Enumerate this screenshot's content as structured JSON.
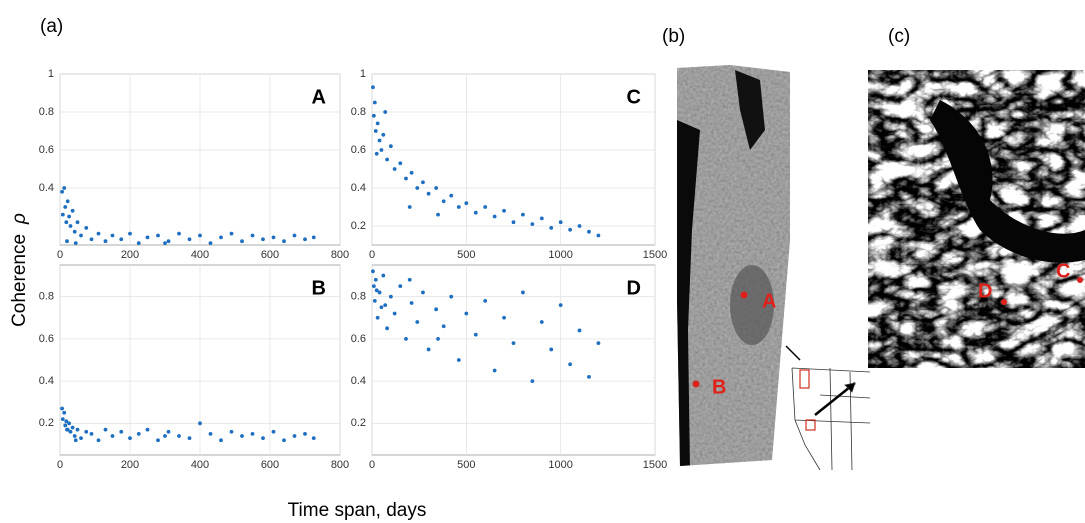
{
  "panel_labels": [
    "(a)",
    "(b)",
    "(c)"
  ],
  "ylabel": "Coherence",
  "ylabel_symbol": "ρ",
  "xlabel": "Time span, days",
  "map_markers": [
    "A",
    "B",
    "C",
    "D"
  ],
  "chart_data": [
    {
      "type": "scatter",
      "label": "A",
      "color": "#1f6fc0",
      "grid": true,
      "x": [
        6,
        8,
        12,
        15,
        18,
        22,
        26,
        30,
        36,
        42,
        50,
        60,
        75,
        90,
        110,
        130,
        150,
        175,
        200,
        225,
        250,
        280,
        310,
        340,
        370,
        400,
        430,
        460,
        490,
        520,
        550,
        580,
        610,
        640,
        670,
        700,
        725,
        20,
        45,
        300
      ],
      "y": [
        0.38,
        0.26,
        0.4,
        0.3,
        0.22,
        0.33,
        0.25,
        0.2,
        0.28,
        0.17,
        0.22,
        0.15,
        0.19,
        0.13,
        0.16,
        0.12,
        0.15,
        0.13,
        0.16,
        0.11,
        0.14,
        0.15,
        0.12,
        0.16,
        0.13,
        0.15,
        0.11,
        0.14,
        0.16,
        0.12,
        0.15,
        0.13,
        0.14,
        0.12,
        0.15,
        0.13,
        0.14,
        0.12,
        0.11,
        0.11
      ],
      "xlim": [
        0,
        800
      ],
      "xticks": [
        0,
        200,
        400,
        600,
        800
      ],
      "ylim": [
        0.1,
        1
      ],
      "yticks": [
        0.4,
        0.6,
        0.8,
        1
      ]
    },
    {
      "type": "scatter",
      "label": "B",
      "color": "#1f6fc0",
      "grid": true,
      "x": [
        6,
        8,
        12,
        15,
        18,
        22,
        26,
        30,
        36,
        42,
        50,
        60,
        75,
        90,
        110,
        130,
        150,
        175,
        200,
        225,
        250,
        280,
        310,
        340,
        370,
        400,
        430,
        460,
        490,
        520,
        550,
        580,
        610,
        640,
        670,
        700,
        725,
        20,
        45,
        300
      ],
      "y": [
        0.27,
        0.22,
        0.25,
        0.19,
        0.21,
        0.17,
        0.2,
        0.16,
        0.18,
        0.14,
        0.17,
        0.13,
        0.16,
        0.15,
        0.12,
        0.17,
        0.14,
        0.16,
        0.13,
        0.15,
        0.17,
        0.12,
        0.16,
        0.14,
        0.13,
        0.2,
        0.15,
        0.12,
        0.16,
        0.14,
        0.15,
        0.13,
        0.16,
        0.12,
        0.14,
        0.15,
        0.13,
        0.17,
        0.12,
        0.14
      ],
      "xlim": [
        0,
        800
      ],
      "xticks": [
        0,
        200,
        400,
        600,
        800
      ],
      "ylim": [
        0.05,
        0.95
      ],
      "yticks": [
        0.2,
        0.4,
        0.6,
        0.8
      ]
    },
    {
      "type": "scatter",
      "label": "C",
      "color": "#1f6fc0",
      "grid": true,
      "x": [
        5,
        10,
        15,
        20,
        30,
        40,
        50,
        60,
        80,
        100,
        120,
        150,
        180,
        210,
        240,
        270,
        300,
        340,
        380,
        420,
        460,
        500,
        550,
        600,
        650,
        700,
        750,
        800,
        850,
        900,
        950,
        1000,
        1050,
        1100,
        1150,
        1200,
        25,
        70,
        200,
        350
      ],
      "y": [
        0.93,
        0.78,
        0.85,
        0.7,
        0.74,
        0.65,
        0.6,
        0.68,
        0.55,
        0.62,
        0.5,
        0.53,
        0.45,
        0.48,
        0.4,
        0.43,
        0.37,
        0.4,
        0.33,
        0.36,
        0.3,
        0.32,
        0.27,
        0.3,
        0.25,
        0.28,
        0.22,
        0.26,
        0.21,
        0.24,
        0.19,
        0.22,
        0.18,
        0.2,
        0.17,
        0.15,
        0.58,
        0.8,
        0.3,
        0.26
      ],
      "xlim": [
        0,
        1500
      ],
      "xticks": [
        0,
        500,
        1000,
        1500
      ],
      "ylim": [
        0.1,
        1
      ],
      "yticks": [
        0.2,
        0.4,
        0.6,
        0.8,
        1
      ]
    },
    {
      "type": "scatter",
      "label": "D",
      "color": "#1f6fc0",
      "grid": true,
      "x": [
        5,
        10,
        15,
        20,
        30,
        40,
        50,
        60,
        80,
        100,
        120,
        150,
        180,
        210,
        240,
        270,
        300,
        340,
        380,
        420,
        460,
        500,
        550,
        600,
        650,
        700,
        750,
        800,
        850,
        900,
        950,
        1000,
        1050,
        1100,
        1150,
        1200,
        25,
        70,
        200,
        350
      ],
      "y": [
        0.92,
        0.85,
        0.78,
        0.88,
        0.7,
        0.82,
        0.75,
        0.9,
        0.65,
        0.8,
        0.72,
        0.85,
        0.6,
        0.77,
        0.68,
        0.82,
        0.55,
        0.74,
        0.66,
        0.8,
        0.5,
        0.72,
        0.62,
        0.78,
        0.45,
        0.7,
        0.58,
        0.82,
        0.4,
        0.68,
        0.55,
        0.76,
        0.48,
        0.64,
        0.42,
        0.58,
        0.83,
        0.76,
        0.88,
        0.6
      ],
      "xlim": [
        0,
        1500
      ],
      "xticks": [
        0,
        500,
        1000,
        1500
      ],
      "ylim": [
        0.05,
        0.95
      ],
      "yticks": [
        0.2,
        0.4,
        0.6,
        0.8
      ]
    }
  ]
}
